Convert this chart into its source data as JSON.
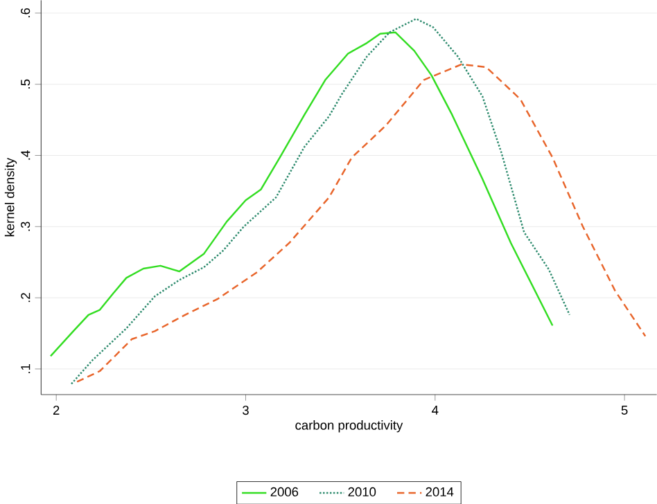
{
  "chart_data": {
    "type": "line",
    "xlabel": "carbon productivity",
    "ylabel": "kernel density",
    "xlim": [
      1.92,
      5.17
    ],
    "ylim": [
      0.064,
      0.618
    ],
    "xticks": [
      2,
      3,
      4,
      5
    ],
    "yticks": [
      {
        "value": 0.1,
        "label": ".1"
      },
      {
        "value": 0.2,
        "label": ".2"
      },
      {
        "value": 0.3,
        "label": ".3"
      },
      {
        "value": 0.4,
        "label": ".4"
      },
      {
        "value": 0.5,
        "label": ".5"
      },
      {
        "value": 0.6,
        "label": ".6"
      }
    ],
    "grid": "y",
    "legend": "bottom",
    "series": [
      {
        "name": "2006",
        "color": "#33dd22",
        "line_style": "solid",
        "x": [
          1.97,
          2.09,
          2.17,
          2.23,
          2.3,
          2.37,
          2.46,
          2.55,
          2.65,
          2.78,
          2.9,
          3.0,
          3.08,
          3.18,
          3.31,
          3.42,
          3.54,
          3.64,
          3.71,
          3.79,
          3.89,
          3.98,
          4.09,
          4.25,
          4.4,
          4.47,
          4.62
        ],
        "values": [
          0.118,
          0.153,
          0.176,
          0.183,
          0.206,
          0.228,
          0.241,
          0.245,
          0.237,
          0.262,
          0.307,
          0.337,
          0.352,
          0.397,
          0.457,
          0.506,
          0.543,
          0.558,
          0.571,
          0.573,
          0.547,
          0.513,
          0.457,
          0.367,
          0.277,
          0.24,
          0.161
        ]
      },
      {
        "name": "2010",
        "color": "#2e8b6e",
        "line_style": "dotted",
        "x": [
          2.08,
          2.19,
          2.37,
          2.52,
          2.65,
          2.78,
          2.88,
          2.99,
          3.16,
          3.31,
          3.44,
          3.51,
          3.64,
          3.76,
          3.9,
          3.99,
          4.12,
          4.25,
          4.35,
          4.47,
          4.6,
          4.71
        ],
        "values": [
          0.079,
          0.112,
          0.157,
          0.202,
          0.225,
          0.243,
          0.266,
          0.3,
          0.341,
          0.412,
          0.455,
          0.487,
          0.539,
          0.573,
          0.592,
          0.58,
          0.539,
          0.483,
          0.404,
          0.292,
          0.24,
          0.176
        ]
      },
      {
        "name": "2014",
        "color": "#e8652b",
        "line_style": "dashed",
        "x": [
          2.11,
          2.23,
          2.4,
          2.52,
          2.68,
          2.85,
          3.06,
          3.23,
          3.44,
          3.56,
          3.74,
          3.94,
          4.14,
          4.27,
          4.45,
          4.62,
          4.78,
          4.95,
          5.11
        ],
        "values": [
          0.082,
          0.097,
          0.142,
          0.153,
          0.176,
          0.198,
          0.236,
          0.277,
          0.341,
          0.397,
          0.442,
          0.506,
          0.528,
          0.524,
          0.479,
          0.397,
          0.3,
          0.21,
          0.146
        ]
      }
    ]
  }
}
